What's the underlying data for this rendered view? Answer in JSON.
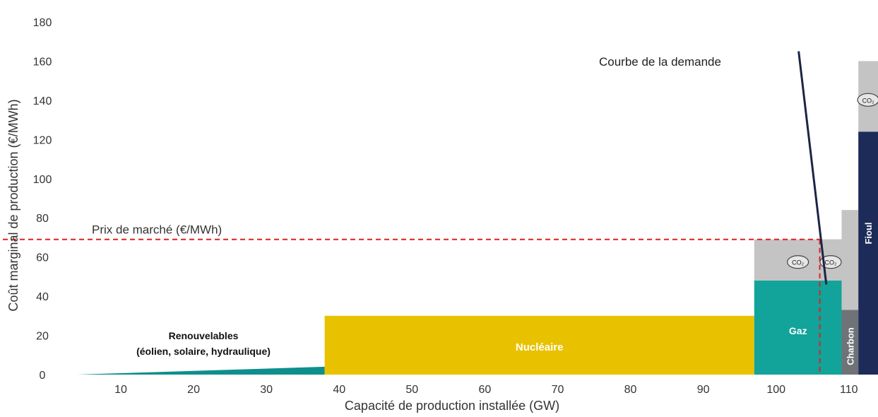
{
  "chart_data": {
    "type": "bar",
    "subtype": "merit-order stepped",
    "xlabel": "Capacité de production installée (GW)",
    "ylabel": "Coût marginal de production (€/MWh)",
    "xlim": [
      3.5,
      114
    ],
    "ylim": [
      0,
      180
    ],
    "x_ticks": [
      10,
      20,
      30,
      40,
      50,
      60,
      70,
      80,
      90,
      100,
      110
    ],
    "y_ticks": [
      0,
      20,
      40,
      60,
      80,
      100,
      120,
      140,
      160,
      180
    ],
    "grid": false,
    "blocks": [
      {
        "key": "renouvelables",
        "x_start": 4,
        "x_end": 38,
        "cost_start": 0,
        "cost_end": 4,
        "co2_cost": 0,
        "color": "#0e8f8c",
        "label_lines": [
          "Renouvelables",
          "(éolien, solaire, hydraulique)"
        ]
      },
      {
        "key": "nucleaire",
        "x_start": 38,
        "x_end": 97,
        "cost": 30,
        "co2_cost": 0,
        "color": "#e8c200",
        "label_lines": [
          "Nucléaire"
        ]
      },
      {
        "key": "gaz",
        "x_start": 97,
        "x_end": 109,
        "cost": 48,
        "co2_cost": 21,
        "color": "#12a39a",
        "label_lines": [
          "Gaz"
        ]
      },
      {
        "key": "gaz_co2_step",
        "x_start": 106,
        "x_end": 109,
        "cost": 48,
        "co2_cost": 21,
        "color": "#12a39a",
        "label_lines": []
      },
      {
        "key": "charbon",
        "x_start": 109,
        "x_end": 111.3,
        "cost": 33,
        "co2_cost": 51,
        "color": "#6f7378",
        "label_lines": [
          "Charbon"
        ]
      },
      {
        "key": "fioul",
        "x_start": 111.3,
        "x_end": 114,
        "cost": 124,
        "co2_cost": 36,
        "color": "#1d2b59",
        "label_lines": [
          "Fioul"
        ]
      }
    ],
    "co2_color": "#c4c4c4",
    "co2_badge": "CO₂",
    "market_price": {
      "value": 69,
      "label": "Prix de marché (€/MWh)",
      "color": "#e02020"
    },
    "demand_curve": {
      "label": "Courbe de la demande",
      "points": [
        [
          103.1,
          165
        ],
        [
          106.9,
          46
        ]
      ],
      "demand_gw": 106
    }
  }
}
